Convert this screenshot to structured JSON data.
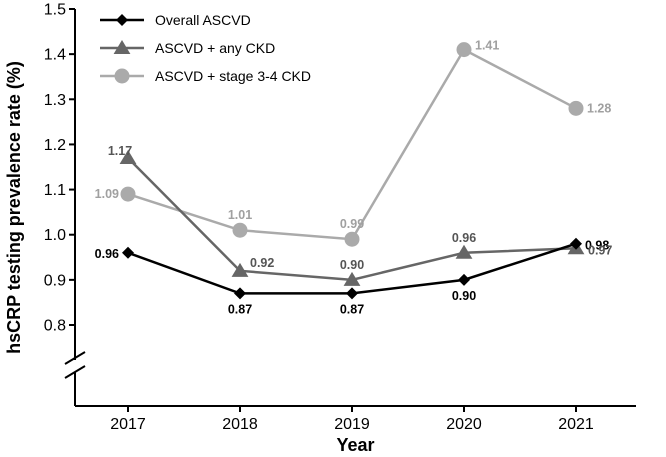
{
  "chart_data": {
    "type": "line",
    "title": "",
    "xlabel": "Year",
    "ylabel": "hsCRP testing prevalence rate (%)",
    "x": [
      "2017",
      "2018",
      "2019",
      "2020",
      "2021"
    ],
    "ylim": [
      0.8,
      1.5
    ],
    "yticks": [
      "0.8",
      "0.9",
      "1.0",
      "1.1",
      "1.2",
      "1.3",
      "1.4",
      "1.5"
    ],
    "y_axis_break": true,
    "grid": false,
    "legend_position": "top-left",
    "series": [
      {
        "name": "Overall ASCVD",
        "marker": "diamond",
        "color": "#000000",
        "values": [
          0.96,
          0.87,
          0.87,
          0.9,
          0.98
        ],
        "labels": [
          "0.96",
          "0.87",
          "0.87",
          "0.90",
          "0.98"
        ]
      },
      {
        "name": "ASCVD + any CKD",
        "marker": "triangle",
        "color": "#666666",
        "values": [
          1.17,
          0.92,
          0.9,
          0.96,
          0.97
        ],
        "labels": [
          "1.17",
          "0.92",
          "0.90",
          "0.96",
          "0.97"
        ]
      },
      {
        "name": "ASCVD + stage 3-4 CKD",
        "marker": "circle",
        "color": "#aaaaaa",
        "values": [
          1.09,
          1.01,
          0.99,
          1.41,
          1.28
        ],
        "labels": [
          "1.09",
          "1.01",
          "0.99",
          "1.41",
          "1.28"
        ]
      }
    ]
  }
}
